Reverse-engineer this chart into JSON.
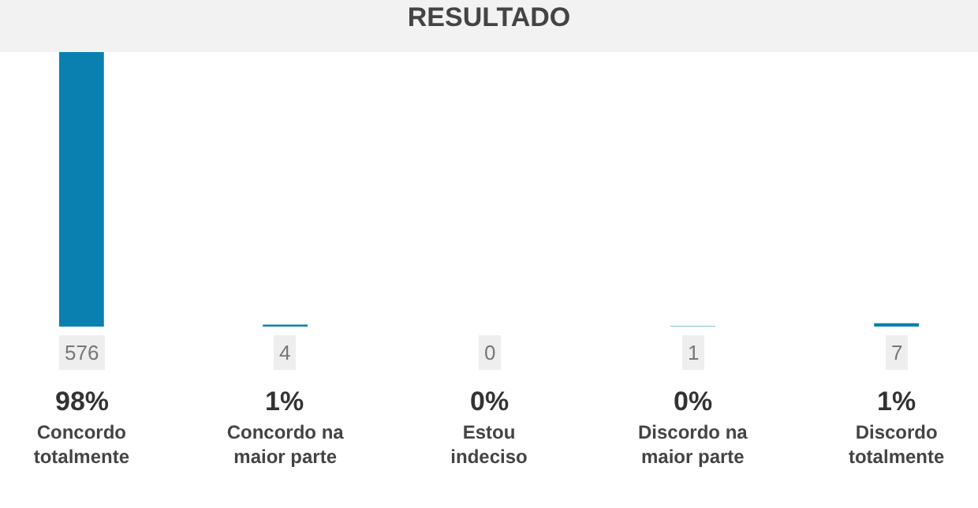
{
  "chart_data": {
    "type": "bar",
    "title": "RESULTADO",
    "categories": [
      "Concordo totalmente",
      "Concordo na maior parte",
      "Estou indeciso",
      "Discordo na maior parte",
      "Discordo totalmente"
    ],
    "values": [
      576,
      4,
      0,
      1,
      7
    ],
    "annotations": [
      "98%",
      "1%",
      "0%",
      "0%",
      "1%"
    ],
    "color": "#0a80b0",
    "data_labels": true
  }
}
